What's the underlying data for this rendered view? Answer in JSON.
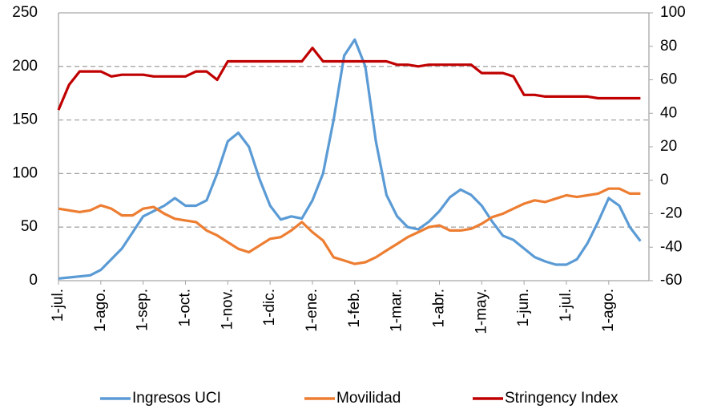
{
  "chart_data": {
    "type": "line",
    "categories": [
      "1-jul.",
      null,
      null,
      null,
      "1-ago.",
      null,
      null,
      null,
      "1-sep.",
      null,
      null,
      null,
      "1-oct.",
      null,
      null,
      null,
      "1-nov.",
      null,
      null,
      null,
      "1-dic.",
      null,
      null,
      null,
      "1-ene.",
      null,
      null,
      null,
      "1-feb.",
      null,
      null,
      null,
      "1-mar.",
      null,
      null,
      null,
      "1-abr.",
      null,
      null,
      null,
      "1-may.",
      null,
      null,
      null,
      "1-jun.",
      null,
      null,
      null,
      "1-jul.",
      null,
      null,
      null,
      "1-ago.",
      null,
      null,
      null
    ],
    "series": [
      {
        "name": "Ingresos UCI",
        "color": "#5b9bd5",
        "values": [
          2,
          3,
          4,
          5,
          10,
          20,
          30,
          45,
          60,
          65,
          70,
          77,
          70,
          70,
          75,
          100,
          130,
          138,
          125,
          95,
          70,
          57,
          60,
          58,
          75,
          100,
          150,
          210,
          225,
          200,
          130,
          80,
          60,
          50,
          48,
          55,
          65,
          78,
          85,
          80,
          70,
          55,
          42,
          38,
          30,
          22,
          18,
          15,
          15,
          20,
          35,
          55,
          77,
          70,
          50,
          37
        ]
      },
      {
        "name": "Movilidad",
        "color": "#ed7d31",
        "axis": "y2",
        "values": [
          -17,
          -18,
          -19,
          -18,
          -15,
          -17,
          -21,
          -21,
          -17,
          -16,
          -20,
          -23,
          -24,
          -25,
          -30,
          -33,
          -37,
          -41,
          -43,
          -39,
          -35,
          -34,
          -30,
          -25,
          -31,
          -36,
          -46,
          -48,
          -50,
          -49,
          -46,
          -42,
          -38,
          -34,
          -31,
          -28,
          -27,
          -30,
          -30,
          -29,
          -26,
          -22,
          -20,
          -17,
          -14,
          -12,
          -13,
          -11,
          -9,
          -10,
          -9,
          -8,
          -5,
          -5,
          -8,
          -8
        ]
      },
      {
        "name": "Stringency Index",
        "color": "#c00000",
        "axis": "y2",
        "values": [
          42,
          57,
          65,
          65,
          65,
          62,
          63,
          63,
          63,
          62,
          62,
          62,
          62,
          65,
          65,
          60,
          71,
          71,
          71,
          71,
          71,
          71,
          71,
          71,
          79,
          71,
          71,
          71,
          71,
          71,
          71,
          71,
          69,
          69,
          68,
          69,
          69,
          69,
          69,
          69,
          64,
          64,
          64,
          62,
          51,
          51,
          50,
          50,
          50,
          50,
          50,
          49,
          49,
          49,
          49,
          49
        ]
      }
    ],
    "ylim": [
      0,
      250
    ],
    "yticks": [
      0,
      50,
      100,
      150,
      200,
      250
    ],
    "y2lim": [
      -60,
      100
    ],
    "y2ticks": [
      -60,
      -40,
      -20,
      0,
      20,
      40,
      60,
      80,
      100
    ],
    "grid": true,
    "legend": "bottom"
  }
}
